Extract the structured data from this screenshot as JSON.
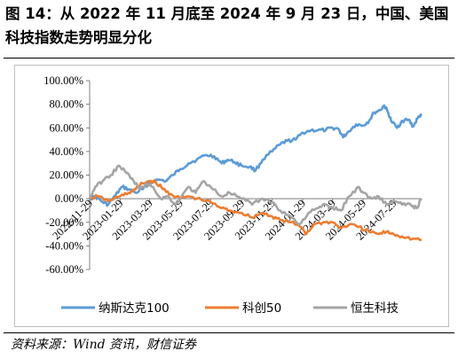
{
  "figure": {
    "title": "图 14：从 2022 年 11 月底至 2024 年 9 月 23 日，中国、美国科技指数走势明显分化",
    "source": "资料来源：Wind 资讯，财信证券"
  },
  "chart_data": {
    "type": "line",
    "ylim": [
      -60,
      100
    ],
    "y_ticks": [
      "-60.00%",
      "-40.00%",
      "-20.00%",
      "0.00%",
      "20.00%",
      "40.00%",
      "60.00%",
      "80.00%",
      "100.00%"
    ],
    "x_ticks": [
      "2022-11-29",
      "2023-01-29",
      "2023-03-29",
      "2023-05-29",
      "2023-07-29",
      "2023-09-29",
      "2023-11-29",
      "2024-01-29",
      "2024-03-29",
      "2024-05-29",
      "2024-07-29"
    ],
    "x_range": [
      "2022-11-29",
      "2024-09-23"
    ],
    "grid": false,
    "legend_position": "bottom",
    "series": [
      {
        "name": "纳斯达克100",
        "color": "#5b9bd5",
        "points": [
          [
            "2022-11-29",
            0
          ],
          [
            "2022-12-10",
            2
          ],
          [
            "2022-12-25",
            -3
          ],
          [
            "2023-01-05",
            -5
          ],
          [
            "2023-01-20",
            3
          ],
          [
            "2023-02-02",
            10
          ],
          [
            "2023-02-15",
            8
          ],
          [
            "2023-03-01",
            5
          ],
          [
            "2023-03-15",
            8
          ],
          [
            "2023-03-29",
            14
          ],
          [
            "2023-04-15",
            16
          ],
          [
            "2023-05-01",
            15
          ],
          [
            "2023-05-15",
            20
          ],
          [
            "2023-05-29",
            25
          ],
          [
            "2023-06-15",
            30
          ],
          [
            "2023-07-01",
            33
          ],
          [
            "2023-07-20",
            37
          ],
          [
            "2023-08-05",
            36
          ],
          [
            "2023-08-20",
            30
          ],
          [
            "2023-09-01",
            33
          ],
          [
            "2023-09-15",
            31
          ],
          [
            "2023-09-29",
            28
          ],
          [
            "2023-10-15",
            27
          ],
          [
            "2023-10-27",
            24
          ],
          [
            "2023-11-10",
            33
          ],
          [
            "2023-11-29",
            40
          ],
          [
            "2023-12-15",
            46
          ],
          [
            "2023-12-29",
            49
          ],
          [
            "2024-01-15",
            50
          ],
          [
            "2024-01-29",
            56
          ],
          [
            "2024-02-15",
            58
          ],
          [
            "2024-02-29",
            58
          ],
          [
            "2024-03-15",
            58
          ],
          [
            "2024-03-29",
            60
          ],
          [
            "2024-04-10",
            59
          ],
          [
            "2024-04-19",
            52
          ],
          [
            "2024-04-30",
            57
          ],
          [
            "2024-05-15",
            63
          ],
          [
            "2024-05-29",
            62
          ],
          [
            "2024-06-10",
            66
          ],
          [
            "2024-06-20",
            73
          ],
          [
            "2024-07-02",
            75
          ],
          [
            "2024-07-10",
            79
          ],
          [
            "2024-07-17",
            74
          ],
          [
            "2024-07-24",
            66
          ],
          [
            "2024-08-05",
            60
          ],
          [
            "2024-08-15",
            66
          ],
          [
            "2024-08-28",
            67
          ],
          [
            "2024-09-06",
            61
          ],
          [
            "2024-09-15",
            68
          ],
          [
            "2024-09-23",
            72
          ]
        ]
      },
      {
        "name": "科创50",
        "color": "#ed7d31",
        "points": [
          [
            "2022-11-29",
            0
          ],
          [
            "2022-12-15",
            2
          ],
          [
            "2023-01-05",
            -2
          ],
          [
            "2023-01-29",
            2
          ],
          [
            "2023-02-15",
            5
          ],
          [
            "2023-03-01",
            8
          ],
          [
            "2023-03-15",
            13
          ],
          [
            "2023-03-29",
            15
          ],
          [
            "2023-04-10",
            14
          ],
          [
            "2023-04-25",
            8
          ],
          [
            "2023-05-10",
            4
          ],
          [
            "2023-05-29",
            0
          ],
          [
            "2023-06-15",
            2
          ],
          [
            "2023-07-01",
            0
          ],
          [
            "2023-07-29",
            -3
          ],
          [
            "2023-08-20",
            -8
          ],
          [
            "2023-09-05",
            -10
          ],
          [
            "2023-09-29",
            -12
          ],
          [
            "2023-10-20",
            -16
          ],
          [
            "2023-11-10",
            -12
          ],
          [
            "2023-11-29",
            -15
          ],
          [
            "2023-12-15",
            -18
          ],
          [
            "2024-01-05",
            -20
          ],
          [
            "2024-01-29",
            -25
          ],
          [
            "2024-02-05",
            -30
          ],
          [
            "2024-02-20",
            -22
          ],
          [
            "2024-03-10",
            -20
          ],
          [
            "2024-03-29",
            -20
          ],
          [
            "2024-04-15",
            -25
          ],
          [
            "2024-05-01",
            -22
          ],
          [
            "2024-05-20",
            -24
          ],
          [
            "2024-06-10",
            -28
          ],
          [
            "2024-06-29",
            -30
          ],
          [
            "2024-07-15",
            -28
          ],
          [
            "2024-07-29",
            -30
          ],
          [
            "2024-08-15",
            -32
          ],
          [
            "2024-09-05",
            -34
          ],
          [
            "2024-09-23",
            -35
          ]
        ]
      },
      {
        "name": "恒生科技",
        "color": "#a5a5a5",
        "points": [
          [
            "2022-11-29",
            0
          ],
          [
            "2022-12-10",
            10
          ],
          [
            "2022-12-25",
            15
          ],
          [
            "2023-01-10",
            20
          ],
          [
            "2023-01-27",
            28
          ],
          [
            "2023-02-10",
            22
          ],
          [
            "2023-02-25",
            15
          ],
          [
            "2023-03-10",
            8
          ],
          [
            "2023-03-20",
            12
          ],
          [
            "2023-04-05",
            10
          ],
          [
            "2023-04-20",
            0
          ],
          [
            "2023-05-05",
            2
          ],
          [
            "2023-05-20",
            -5
          ],
          [
            "2023-05-29",
            0
          ],
          [
            "2023-06-15",
            10
          ],
          [
            "2023-06-29",
            5
          ],
          [
            "2023-07-15",
            15
          ],
          [
            "2023-07-29",
            10
          ],
          [
            "2023-08-20",
            2
          ],
          [
            "2023-09-05",
            5
          ],
          [
            "2023-09-29",
            0
          ],
          [
            "2023-10-20",
            -5
          ],
          [
            "2023-11-10",
            0
          ],
          [
            "2023-11-29",
            -3
          ],
          [
            "2023-12-15",
            -10
          ],
          [
            "2024-01-05",
            -15
          ],
          [
            "2024-01-22",
            -22
          ],
          [
            "2024-02-10",
            -12
          ],
          [
            "2024-02-29",
            -8
          ],
          [
            "2024-03-15",
            -5
          ],
          [
            "2024-03-29",
            -8
          ],
          [
            "2024-04-15",
            -10
          ],
          [
            "2024-05-01",
            2
          ],
          [
            "2024-05-20",
            10
          ],
          [
            "2024-05-29",
            5
          ],
          [
            "2024-06-15",
            0
          ],
          [
            "2024-06-29",
            2
          ],
          [
            "2024-07-15",
            -5
          ],
          [
            "2024-07-29",
            -2
          ],
          [
            "2024-08-15",
            -5
          ],
          [
            "2024-09-01",
            -5
          ],
          [
            "2024-09-13",
            -8
          ],
          [
            "2024-09-23",
            0
          ]
        ]
      }
    ]
  }
}
